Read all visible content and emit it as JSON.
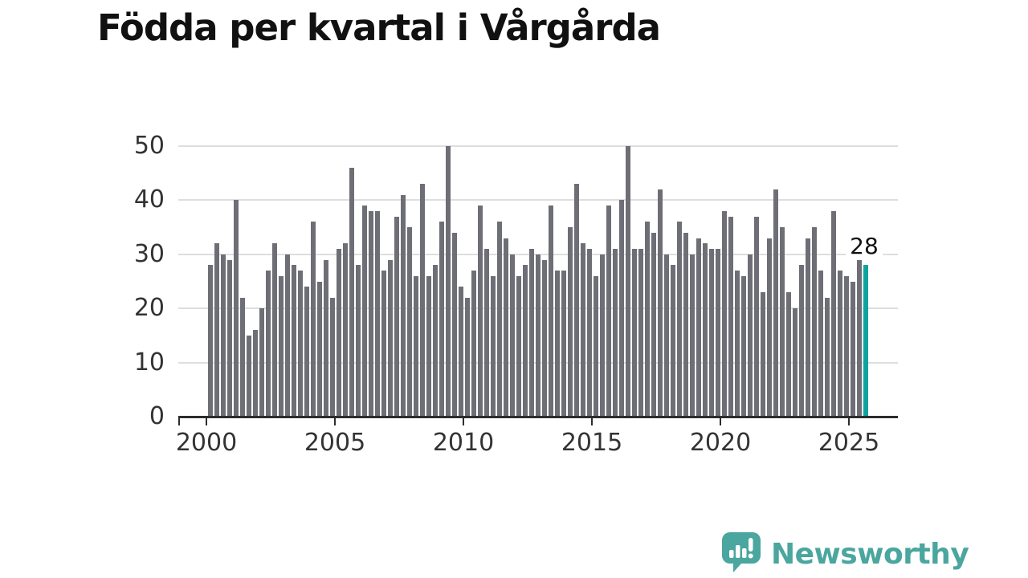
{
  "title": "Födda per kvartal i Vårgårda",
  "chart_data": {
    "type": "bar",
    "title": "Födda per kvartal i Vårgårda",
    "xlabel": "",
    "ylabel": "",
    "unit": "births per quarter",
    "start_period": "2000 Q1",
    "end_period": "2025 Q3",
    "ylim": [
      0,
      50
    ],
    "y_ticks": [
      0,
      10,
      20,
      30,
      40,
      50
    ],
    "x_ticks": [
      2000,
      2005,
      2010,
      2015,
      2020,
      2025
    ],
    "grid": "horizontal",
    "legend": "none",
    "bar_color": "#6e6e76",
    "highlight_color": "#0fa3a0",
    "values": [
      28,
      32,
      30,
      29,
      40,
      22,
      15,
      16,
      20,
      27,
      32,
      26,
      30,
      28,
      27,
      24,
      36,
      25,
      29,
      22,
      31,
      32,
      46,
      28,
      39,
      38,
      38,
      27,
      29,
      37,
      41,
      35,
      26,
      43,
      26,
      28,
      36,
      50,
      34,
      24,
      22,
      27,
      39,
      31,
      26,
      36,
      33,
      30,
      26,
      28,
      31,
      30,
      29,
      39,
      27,
      27,
      35,
      43,
      32,
      31,
      26,
      30,
      39,
      31,
      40,
      50,
      31,
      31,
      36,
      34,
      42,
      30,
      28,
      36,
      34,
      30,
      33,
      32,
      31,
      31,
      38,
      37,
      27,
      26,
      30,
      37,
      23,
      33,
      42,
      35,
      23,
      20,
      28,
      33,
      35,
      27,
      22,
      38,
      27,
      26,
      25,
      29,
      28
    ],
    "highlight": {
      "index": 102,
      "period": "2025 Q3",
      "label": "28"
    }
  },
  "footer": {
    "brand": "Newsworthy",
    "brand_color": "#4aa69e"
  }
}
